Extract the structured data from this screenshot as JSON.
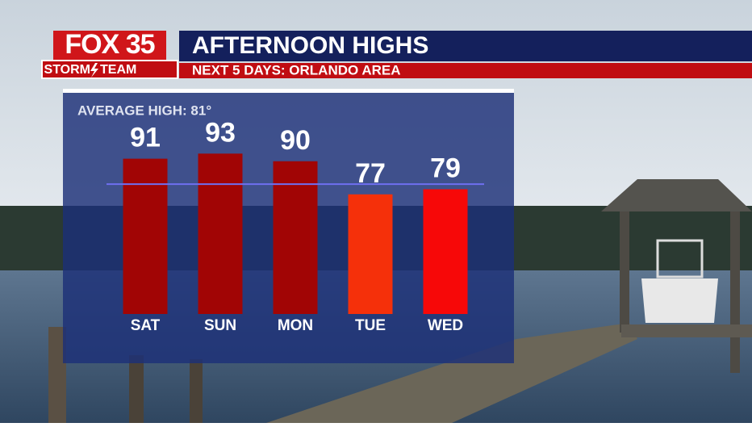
{
  "logo": {
    "brand": "FOX 35",
    "team": "STORM",
    "team2": "TEAM"
  },
  "chart_data": {
    "type": "bar",
    "title": "AFTERNOON HIGHS",
    "subtitle": "NEXT 5 DAYS: ORLANDO AREA",
    "average_label": "AVERAGE HIGH: 81°",
    "average": 81,
    "categories": [
      "SAT",
      "SUN",
      "MON",
      "TUE",
      "WED"
    ],
    "values": [
      91,
      93,
      90,
      77,
      79
    ],
    "colors": [
      "#a10505",
      "#a10505",
      "#a10505",
      "#f5300a",
      "#f70808"
    ],
    "average_color": "#6f6ff0",
    "ylim": [
      30,
      95
    ]
  }
}
